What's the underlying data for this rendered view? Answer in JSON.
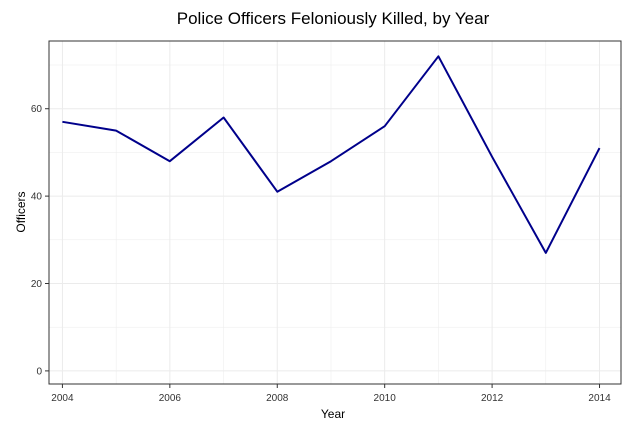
{
  "chart_data": {
    "type": "line",
    "title": "Police Officers Feloniously Killed, by Year",
    "xlabel": "Year",
    "ylabel": "Officers",
    "x": [
      2004,
      2005,
      2006,
      2007,
      2008,
      2009,
      2010,
      2011,
      2012,
      2013,
      2014
    ],
    "series": [
      {
        "values": [
          57,
          55,
          48,
          58,
          41,
          48,
          56,
          72,
          49,
          27,
          51
        ]
      }
    ],
    "xticks": [
      2004,
      2006,
      2008,
      2010,
      2012,
      2014
    ],
    "yticks": [
      0,
      20,
      40,
      60
    ],
    "xlim": [
      2003.75,
      2014.4
    ],
    "ylim": [
      -3,
      75.5
    ],
    "grid": true,
    "colors": {
      "line": "#00008B",
      "grid": "#EBEBEB",
      "border": "#333333"
    }
  }
}
